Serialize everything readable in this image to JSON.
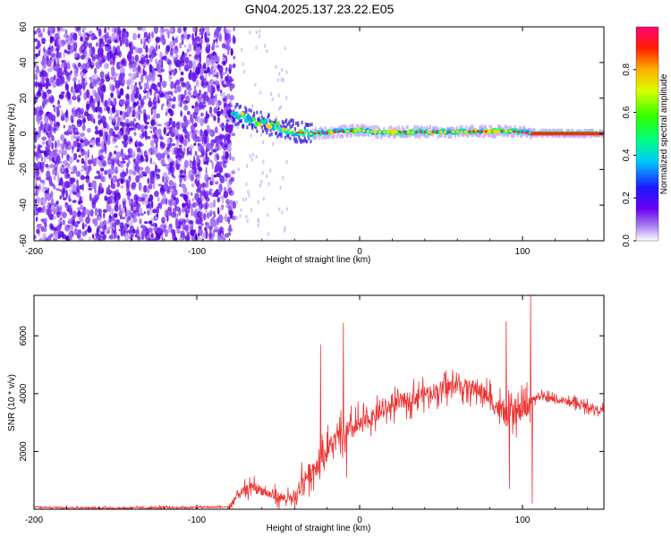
{
  "title": "GN04.2025.137.23.22.E05",
  "colors": {
    "snr_line": "#ee3333",
    "spec_noise": "#6a12f0",
    "spec_track_core": "#ff2a1a",
    "axis": "#000000"
  },
  "chart_data": [
    {
      "type": "heatmap",
      "name": "spectrogram",
      "xlabel": "Height of straight line (km)",
      "ylabel": "Frequency (Hz)",
      "xlim": [
        -200,
        150
      ],
      "ylim": [
        -60,
        60
      ],
      "xticks": [
        -200,
        -100,
        0,
        100
      ],
      "yticks": [
        -60,
        -40,
        -20,
        0,
        20,
        40,
        60
      ],
      "colorbar": {
        "label": "Normalized spectral amplitude",
        "range": [
          0,
          1
        ],
        "ticks": [
          0.0,
          0.2,
          0.4,
          0.6,
          0.8
        ],
        "colormap": "rainbow (white-purple-blue-cyan-green-yellow-red)"
      },
      "description_regions": {
        "noise_region_x": [
          -200,
          -77
        ],
        "sparse_region_x": [
          -77,
          -45
        ],
        "signal_track": [
          {
            "x": -78,
            "freq": 11
          },
          {
            "x": -70,
            "freq": 9
          },
          {
            "x": -60,
            "freq": 6
          },
          {
            "x": -50,
            "freq": 4
          },
          {
            "x": -40,
            "freq": 1
          },
          {
            "x": -30,
            "freq": 0
          },
          {
            "x": -15,
            "freq": 1
          },
          {
            "x": -8,
            "freq": 1.5
          },
          {
            "x": 0,
            "freq": 2
          },
          {
            "x": 10,
            "freq": 1
          },
          {
            "x": 50,
            "freq": 1
          },
          {
            "x": 90,
            "freq": 1.5
          },
          {
            "x": 105,
            "freq": 0.5
          },
          {
            "x": 150,
            "freq": 0
          }
        ]
      }
    },
    {
      "type": "line",
      "name": "snr",
      "xlabel": "Height of straight line (km)",
      "ylabel": "SNR (10 * v/v)",
      "xlim": [
        -200,
        150
      ],
      "ylim": [
        0,
        7400
      ],
      "xticks": [
        -200,
        -100,
        0,
        100
      ],
      "yticks": [
        2000,
        4000,
        6000
      ],
      "envelope": [
        {
          "x": -200,
          "y": 70
        },
        {
          "x": -150,
          "y": 40
        },
        {
          "x": -80,
          "y": 80
        },
        {
          "x": -75,
          "y": 500
        },
        {
          "x": -65,
          "y": 800
        },
        {
          "x": -55,
          "y": 500
        },
        {
          "x": -40,
          "y": 300
        },
        {
          "x": -35,
          "y": 1000
        },
        {
          "x": -25,
          "y": 1600
        },
        {
          "x": -18,
          "y": 2200
        },
        {
          "x": -10,
          "y": 2600
        },
        {
          "x": 0,
          "y": 2900
        },
        {
          "x": 20,
          "y": 3600
        },
        {
          "x": 40,
          "y": 4000
        },
        {
          "x": 60,
          "y": 4300
        },
        {
          "x": 75,
          "y": 4100
        },
        {
          "x": 90,
          "y": 3200
        },
        {
          "x": 100,
          "y": 3400
        },
        {
          "x": 108,
          "y": 3900
        },
        {
          "x": 130,
          "y": 3700
        },
        {
          "x": 150,
          "y": 3400
        }
      ],
      "spikes": [
        {
          "x": -24,
          "y": 5700
        },
        {
          "x": -10,
          "y": 6450
        },
        {
          "x": -8,
          "y": 1100
        },
        {
          "x": 90,
          "y": 6500
        },
        {
          "x": 92,
          "y": 700
        },
        {
          "x": 105,
          "y": 7400
        },
        {
          "x": 106,
          "y": 200
        }
      ]
    }
  ]
}
